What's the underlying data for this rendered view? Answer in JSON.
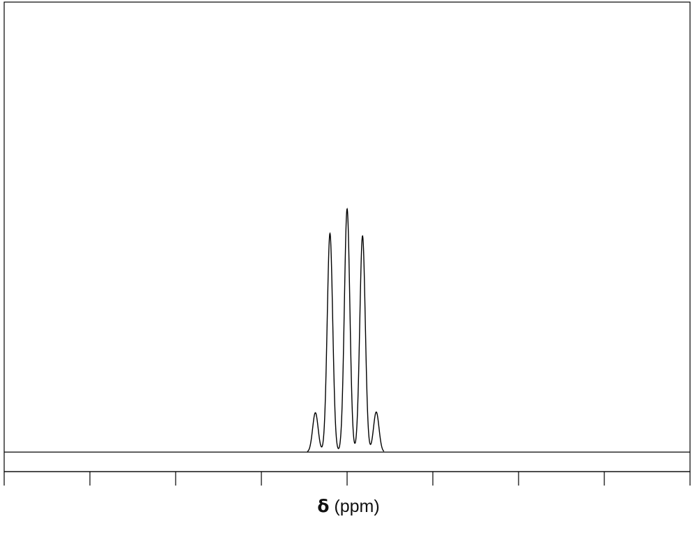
{
  "chart_data": {
    "type": "line",
    "title": "",
    "xlabel_symbol": "δ",
    "xlabel_unit": "(ppm)",
    "ylabel": "",
    "axis_ticks_major": 8,
    "tick_labels": [],
    "signal": {
      "multiplicity": "quintet",
      "relative_intensities": [
        1,
        6,
        9,
        6,
        1
      ],
      "peaks": [
        {
          "x": -0.37,
          "height": 0.162
        },
        {
          "x": -0.2,
          "height": 0.899
        },
        {
          "x": 0.0,
          "height": 1.0
        },
        {
          "x": 0.18,
          "height": 0.889
        },
        {
          "x": 0.34,
          "height": 0.165
        }
      ]
    },
    "xlim": [
      -4,
      4
    ],
    "ylim": [
      0,
      1.85
    ],
    "grid": false,
    "line_color": "#000000"
  }
}
